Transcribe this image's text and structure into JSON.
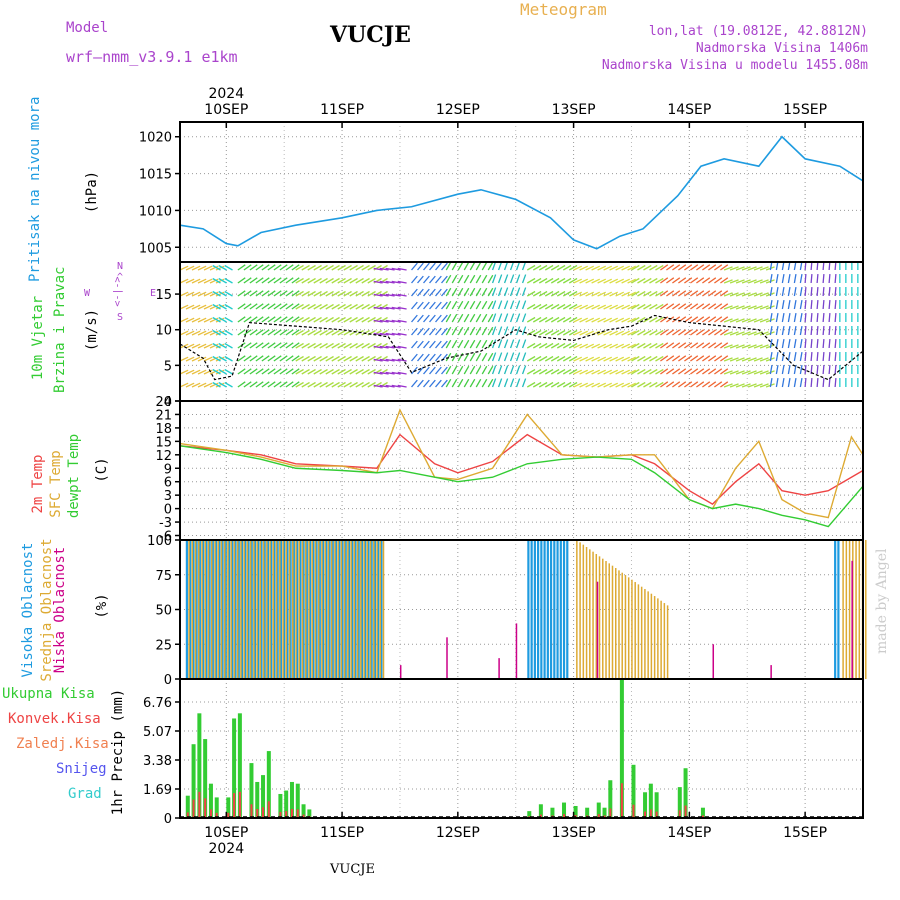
{
  "header": {
    "model_label": "Model",
    "model_name": "wrf—nmm_v3.9.1 e1km",
    "station": "VUCJE",
    "meteogram": "Meteogram",
    "lonlat": "lon,lat (19.0812E, 42.8812N)",
    "elev": "Nadmorska Visina 1406m",
    "elev_model": "Nadmorska Visina u modelu 1455.08m",
    "credit": "made by Angel",
    "footer_station": "VUCJE"
  },
  "colors": {
    "pressure": "#1e9be0",
    "temp2m": "#ee4444",
    "sfc": "#ddaa33",
    "dewpt": "#33cc33",
    "high_cloud": "#1e9be0",
    "mid_cloud": "#ddaa33",
    "low_cloud": "#cc0088",
    "total_precip": "#33cc33",
    "convective": "#ee4444",
    "title_orange": "#e8b050",
    "purple": "#aa44cc"
  },
  "panel_labels": {
    "pressure": [
      "Pritisak na nivou mora",
      "(hPa)"
    ],
    "wind": [
      "10m Vjetar",
      "Brzina i Pravac",
      "(m/s)"
    ],
    "wind_compass": [
      "W",
      "<-|->",
      "E",
      "N",
      "^",
      "S"
    ],
    "temp": [
      "2m Temp",
      "SFC Temp",
      "dewpt Temp",
      "(C)"
    ],
    "cloud": [
      "Visoka Oblacnost",
      "Srednja Oblacnost",
      "Niska Oblacnost",
      "(%)"
    ],
    "precip_legend": [
      "Ukupna Kisa",
      "Konvek.Kisa",
      "Zaledj.Kisa",
      "Snijeg",
      "Grad"
    ],
    "precip_axis": "1hr Precip (mm)"
  },
  "chart_data": [
    {
      "type": "line",
      "name": "pressure",
      "x_ticks": [
        "10SEP",
        "11SEP",
        "12SEP",
        "13SEP",
        "14SEP",
        "15SEP"
      ],
      "x_year": "2024",
      "x_range_days": [
        9.6,
        15.5
      ],
      "y_ticks": [
        "1005",
        "1010",
        "1015",
        "1020"
      ],
      "ylim": [
        1003,
        1022
      ],
      "series": [
        {
          "x": [
            9.6,
            9.8,
            10.0,
            10.1,
            10.3,
            10.6,
            11.0,
            11.3,
            11.6,
            12.0,
            12.2,
            12.5,
            12.8,
            13.0,
            13.2,
            13.4,
            13.6,
            13.9,
            14.1,
            14.3,
            14.6,
            14.8,
            15.0,
            15.3,
            15.5
          ],
          "values": [
            1008,
            1007.5,
            1005.5,
            1005.2,
            1007,
            1008,
            1009,
            1010,
            1010.5,
            1012.2,
            1012.8,
            1011.5,
            1009,
            1006,
            1004.8,
            1006.5,
            1007.5,
            1012,
            1016,
            1017,
            1016,
            1020,
            1017,
            1016,
            1014
          ]
        }
      ]
    },
    {
      "type": "line",
      "name": "wind_speed",
      "y_ticks": [
        "0",
        "5",
        "10",
        "15"
      ],
      "ylim": [
        0,
        19.5
      ],
      "series": [
        {
          "x": [
            9.6,
            9.8,
            9.9,
            10.05,
            10.2,
            10.6,
            11.0,
            11.4,
            11.6,
            11.9,
            12.2,
            12.5,
            12.7,
            13.0,
            13.3,
            13.5,
            13.7,
            14.0,
            14.3,
            14.6,
            14.9,
            15.2,
            15.5
          ],
          "values": [
            8,
            6,
            3,
            3.5,
            11,
            10.5,
            10,
            9,
            4,
            6,
            7,
            10,
            9,
            8.5,
            10,
            10.5,
            12,
            11,
            10.5,
            10,
            5,
            3,
            7
          ]
        }
      ]
    },
    {
      "type": "line",
      "name": "temperature",
      "y_ticks": [
        "-6",
        "-3",
        "0",
        "3",
        "6",
        "9",
        "12",
        "15",
        "18",
        "21",
        "24"
      ],
      "ylim": [
        -7,
        24
      ],
      "series": [
        {
          "name": "2m Temp",
          "x": [
            9.6,
            10.0,
            10.3,
            10.6,
            11.0,
            11.3,
            11.5,
            11.8,
            12.0,
            12.3,
            12.6,
            12.9,
            13.2,
            13.5,
            13.7,
            14.0,
            14.2,
            14.4,
            14.6,
            14.8,
            15.0,
            15.2,
            15.5
          ],
          "values": [
            14,
            13,
            12,
            10,
            9.5,
            9,
            16.5,
            10,
            8,
            10.5,
            16.5,
            12,
            11.5,
            12,
            10,
            4,
            1,
            6,
            10,
            4,
            3,
            4,
            8.5
          ]
        },
        {
          "name": "SFC Temp",
          "x": [
            9.6,
            10.0,
            10.3,
            10.6,
            11.0,
            11.3,
            11.5,
            11.8,
            12.0,
            12.3,
            12.6,
            12.9,
            13.2,
            13.5,
            13.7,
            14.0,
            14.2,
            14.4,
            14.6,
            14.8,
            15.0,
            15.2,
            15.4,
            15.5
          ],
          "values": [
            14.5,
            13,
            11.5,
            9.5,
            9.5,
            8,
            22,
            7,
            6.5,
            9,
            21,
            12,
            11.5,
            12,
            12,
            2,
            0,
            9,
            15,
            2,
            -1,
            -2,
            16,
            12
          ]
        },
        {
          "name": "dewpt Temp",
          "x": [
            9.6,
            10.0,
            10.3,
            10.6,
            11.0,
            11.3,
            11.5,
            11.8,
            12.0,
            12.3,
            12.6,
            12.9,
            13.2,
            13.5,
            13.7,
            14.0,
            14.2,
            14.4,
            14.6,
            14.8,
            15.0,
            15.2,
            15.5
          ],
          "values": [
            14,
            12.5,
            11,
            9,
            8.5,
            8,
            8.5,
            7,
            6,
            7,
            10,
            11,
            11.5,
            11,
            8,
            2,
            0,
            1,
            0,
            -1.5,
            -2.5,
            -4,
            5
          ]
        }
      ]
    },
    {
      "type": "bar",
      "name": "cloud_cover",
      "y_ticks": [
        "0",
        "25",
        "50",
        "75",
        "100"
      ],
      "ylim": [
        0,
        100
      ],
      "high_cloud_segments_days": [
        [
          9.65,
          11.35
        ],
        [
          12.6,
          12.95
        ],
        [
          15.25,
          15.3
        ]
      ],
      "mid_cloud_segments_days": [
        [
          9.65,
          11.35
        ],
        [
          13.0,
          13.8
        ],
        [
          15.3,
          15.5
        ]
      ]
    },
    {
      "type": "bar",
      "name": "precipitation",
      "y_ticks": [
        "0",
        "1.69",
        "3.38",
        "5.07",
        "6.76"
      ],
      "ylim": [
        0,
        8.1
      ],
      "x": [
        9.65,
        9.7,
        9.75,
        9.8,
        9.85,
        9.9,
        10.0,
        10.05,
        10.1,
        10.2,
        10.25,
        10.3,
        10.35,
        10.45,
        10.5,
        10.55,
        10.6,
        10.65,
        10.7,
        12.6,
        12.7,
        12.8,
        12.9,
        13.0,
        13.1,
        13.2,
        13.25,
        13.3,
        13.4,
        13.5,
        13.6,
        13.65,
        13.7,
        13.9,
        13.95,
        14.1
      ],
      "values": [
        1.3,
        4.3,
        6.1,
        4.6,
        2.0,
        1.2,
        1.2,
        5.8,
        6.1,
        3.2,
        2.1,
        2.5,
        3.9,
        1.4,
        1.6,
        2.1,
        2.0,
        0.8,
        0.5,
        0.4,
        0.8,
        0.6,
        0.9,
        0.7,
        0.6,
        0.9,
        0.6,
        2.2,
        8.1,
        3.1,
        1.5,
        2.0,
        1.5,
        1.8,
        2.9,
        0.6
      ]
    }
  ]
}
